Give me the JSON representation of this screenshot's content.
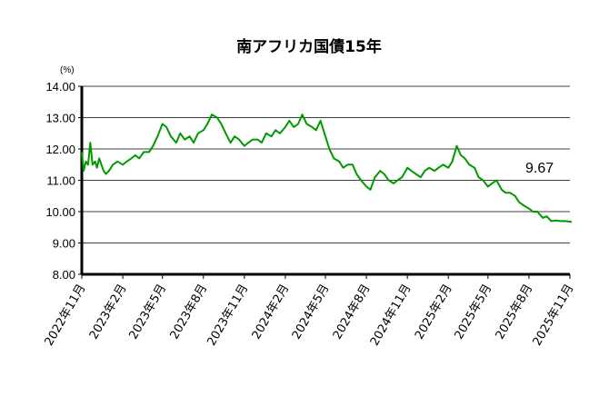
{
  "chart_data": {
    "type": "line",
    "title": "南アフリカ国債15年",
    "unit_label": "(%)",
    "ylim": [
      8.0,
      14.0
    ],
    "y_ticks": [
      "8.00",
      "9.00",
      "10.00",
      "11.00",
      "12.00",
      "13.00",
      "14.00"
    ],
    "x_ticks": [
      "2022年11月",
      "2023年2月",
      "2023年5月",
      "2023年8月",
      "2023年11月",
      "2024年2月",
      "2024年5月",
      "2024年8月",
      "2024年11月",
      "2025年2月",
      "2025年5月",
      "2025年8月",
      "2025年11月"
    ],
    "grid": true,
    "annotation": "9.67",
    "series": [
      {
        "color": "#009900",
        "x": [
          "2022-11-01",
          "2022-11-05",
          "2022-11-10",
          "2022-11-15",
          "2022-11-20",
          "2022-11-25",
          "2022-12-01",
          "2022-12-05",
          "2022-12-10",
          "2022-12-15",
          "2022-12-20",
          "2022-12-25",
          "2023-01-01",
          "2023-01-10",
          "2023-01-20",
          "2023-02-01",
          "2023-02-10",
          "2023-02-20",
          "2023-03-01",
          "2023-03-10",
          "2023-03-20",
          "2023-04-01",
          "2023-04-10",
          "2023-04-20",
          "2023-05-01",
          "2023-05-10",
          "2023-05-20",
          "2023-06-01",
          "2023-06-10",
          "2023-06-20",
          "2023-07-01",
          "2023-07-10",
          "2023-07-20",
          "2023-08-01",
          "2023-08-10",
          "2023-08-20",
          "2023-09-01",
          "2023-09-10",
          "2023-09-20",
          "2023-10-01",
          "2023-10-10",
          "2023-10-20",
          "2023-11-01",
          "2023-11-10",
          "2023-11-20",
          "2023-12-01",
          "2023-12-10",
          "2023-12-20",
          "2024-01-01",
          "2024-01-10",
          "2024-01-20",
          "2024-02-01",
          "2024-02-10",
          "2024-02-20",
          "2024-03-01",
          "2024-03-10",
          "2024-03-20",
          "2024-04-01",
          "2024-04-10",
          "2024-04-20",
          "2024-05-01",
          "2024-05-10",
          "2024-05-20",
          "2024-06-01",
          "2024-06-10",
          "2024-06-20",
          "2024-07-01",
          "2024-07-10",
          "2024-07-20",
          "2024-08-01",
          "2024-08-10",
          "2024-08-20",
          "2024-09-01",
          "2024-09-10",
          "2024-09-20",
          "2024-10-01",
          "2024-10-10",
          "2024-10-20",
          "2024-11-01",
          "2024-11-10",
          "2024-11-20",
          "2024-12-01",
          "2024-12-10",
          "2024-12-20",
          "2025-01-01",
          "2025-01-10",
          "2025-01-20",
          "2025-02-01",
          "2025-02-10",
          "2025-02-20",
          "2025-03-01",
          "2025-03-10",
          "2025-03-20",
          "2025-04-01",
          "2025-04-10",
          "2025-04-20",
          "2025-05-01",
          "2025-05-10",
          "2025-05-20",
          "2025-06-01",
          "2025-06-10",
          "2025-06-20",
          "2025-07-01",
          "2025-07-10",
          "2025-07-20",
          "2025-08-01",
          "2025-08-10",
          "2025-08-20",
          "2025-09-01",
          "2025-09-10",
          "2025-09-20",
          "2025-10-01",
          "2025-10-10",
          "2025-10-20",
          "2025-11-01",
          "2025-11-05"
        ],
        "y": [
          11.9,
          11.3,
          11.6,
          11.5,
          12.2,
          11.5,
          11.6,
          11.4,
          11.7,
          11.5,
          11.3,
          11.2,
          11.3,
          11.5,
          11.6,
          11.5,
          11.6,
          11.7,
          11.8,
          11.7,
          11.9,
          11.9,
          12.1,
          12.4,
          12.8,
          12.7,
          12.4,
          12.2,
          12.5,
          12.3,
          12.4,
          12.2,
          12.5,
          12.6,
          12.8,
          13.1,
          13.0,
          12.8,
          12.5,
          12.2,
          12.4,
          12.3,
          12.1,
          12.2,
          12.3,
          12.3,
          12.2,
          12.5,
          12.4,
          12.6,
          12.5,
          12.7,
          12.9,
          12.7,
          12.8,
          13.1,
          12.8,
          12.7,
          12.6,
          12.9,
          12.4,
          12.0,
          11.7,
          11.6,
          11.4,
          11.5,
          11.5,
          11.2,
          11.0,
          10.8,
          10.7,
          11.1,
          11.3,
          11.2,
          11.0,
          10.9,
          11.0,
          11.1,
          11.4,
          11.3,
          11.2,
          11.1,
          11.3,
          11.4,
          11.3,
          11.4,
          11.5,
          11.4,
          11.6,
          12.1,
          11.8,
          11.7,
          11.5,
          11.4,
          11.1,
          11.0,
          10.8,
          10.9,
          11.0,
          10.7,
          10.6,
          10.6,
          10.5,
          10.3,
          10.2,
          10.1,
          10.0,
          10.0,
          9.8,
          9.85,
          9.7,
          9.72,
          9.7,
          9.7,
          9.68,
          9.67
        ]
      }
    ]
  }
}
